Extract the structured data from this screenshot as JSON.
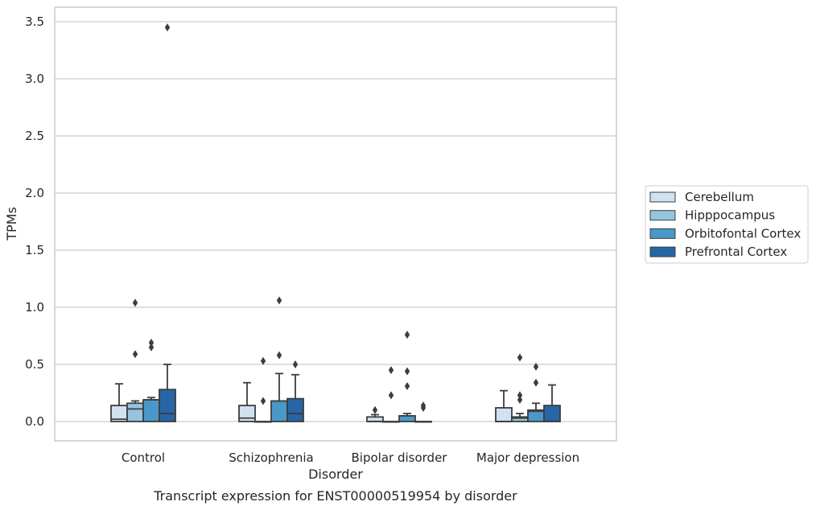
{
  "chart_data": {
    "type": "box",
    "caption": "Transcript expression for ENST00000519954 by disorder",
    "xlabel": "Disorder",
    "ylabel": "TPMs",
    "ylim": [
      -0.17,
      3.62
    ],
    "yticks": [
      "0.0",
      "0.5",
      "1.0",
      "1.5",
      "2.0",
      "2.5",
      "3.0",
      "3.5"
    ],
    "ytick_values": [
      0,
      0.5,
      1.0,
      1.5,
      2.0,
      2.5,
      3.0,
      3.5
    ],
    "grid": true,
    "legend_position": "right",
    "categories": [
      "Control",
      "Schizophrenia",
      "Bipolar disorder",
      "Major depression"
    ],
    "series": [
      {
        "name": "Cerebellum",
        "color": "#d0e1f2",
        "boxes": [
          {
            "q1": 0.0,
            "median": 0.02,
            "q3": 0.14,
            "whisker_low": 0.0,
            "whisker_high": 0.33,
            "outliers": []
          },
          {
            "q1": 0.0,
            "median": 0.03,
            "q3": 0.14,
            "whisker_low": 0.0,
            "whisker_high": 0.34,
            "outliers": []
          },
          {
            "q1": 0.0,
            "median": 0.0,
            "q3": 0.04,
            "whisker_low": 0.0,
            "whisker_high": 0.06,
            "outliers": [
              0.1
            ]
          },
          {
            "q1": 0.0,
            "median": 0.0,
            "q3": 0.12,
            "whisker_low": 0.0,
            "whisker_high": 0.27,
            "outliers": []
          }
        ]
      },
      {
        "name": "Hipppocampus",
        "color": "#94c4df",
        "boxes": [
          {
            "q1": 0.0,
            "median": 0.11,
            "q3": 0.16,
            "whisker_low": 0.0,
            "whisker_high": 0.18,
            "outliers": [
              0.59,
              1.04
            ]
          },
          {
            "q1": 0.0,
            "median": 0.0,
            "q3": 0.0,
            "whisker_low": 0.0,
            "whisker_high": 0.0,
            "outliers": [
              0.18,
              0.53
            ]
          },
          {
            "q1": 0.0,
            "median": 0.0,
            "q3": 0.0,
            "whisker_low": 0.0,
            "whisker_high": 0.0,
            "outliers": [
              0.23,
              0.45
            ]
          },
          {
            "q1": 0.0,
            "median": 0.03,
            "q3": 0.04,
            "whisker_low": 0.0,
            "whisker_high": 0.07,
            "outliers": [
              0.19,
              0.23,
              0.56
            ]
          }
        ]
      },
      {
        "name": "Orbitofontal Cortex",
        "color": "#4a98c9",
        "boxes": [
          {
            "q1": 0.0,
            "median": 0.19,
            "q3": 0.19,
            "whisker_low": 0.0,
            "whisker_high": 0.21,
            "outliers": [
              0.65,
              0.69
            ]
          },
          {
            "q1": 0.0,
            "median": 0.18,
            "q3": 0.18,
            "whisker_low": 0.0,
            "whisker_high": 0.42,
            "outliers": [
              0.58,
              1.06
            ]
          },
          {
            "q1": 0.0,
            "median": 0.05,
            "q3": 0.05,
            "whisker_low": 0.0,
            "whisker_high": 0.07,
            "outliers": [
              0.31,
              0.44,
              0.76
            ]
          },
          {
            "q1": 0.0,
            "median": 0.09,
            "q3": 0.1,
            "whisker_low": 0.0,
            "whisker_high": 0.16,
            "outliers": [
              0.34,
              0.48
            ]
          }
        ]
      },
      {
        "name": "Prefrontal Cortex",
        "color": "#2666a6",
        "boxes": [
          {
            "q1": 0.0,
            "median": 0.07,
            "q3": 0.28,
            "whisker_low": 0.0,
            "whisker_high": 0.5,
            "outliers": [
              3.45
            ]
          },
          {
            "q1": 0.0,
            "median": 0.07,
            "q3": 0.2,
            "whisker_low": 0.0,
            "whisker_high": 0.41,
            "outliers": [
              0.5
            ]
          },
          {
            "q1": 0.0,
            "median": 0.0,
            "q3": 0.0,
            "whisker_low": 0.0,
            "whisker_high": 0.0,
            "outliers": [
              0.12,
              0.14
            ]
          },
          {
            "q1": 0.0,
            "median": 0.0,
            "q3": 0.14,
            "whisker_low": 0.0,
            "whisker_high": 0.32,
            "outliers": []
          }
        ]
      }
    ]
  }
}
